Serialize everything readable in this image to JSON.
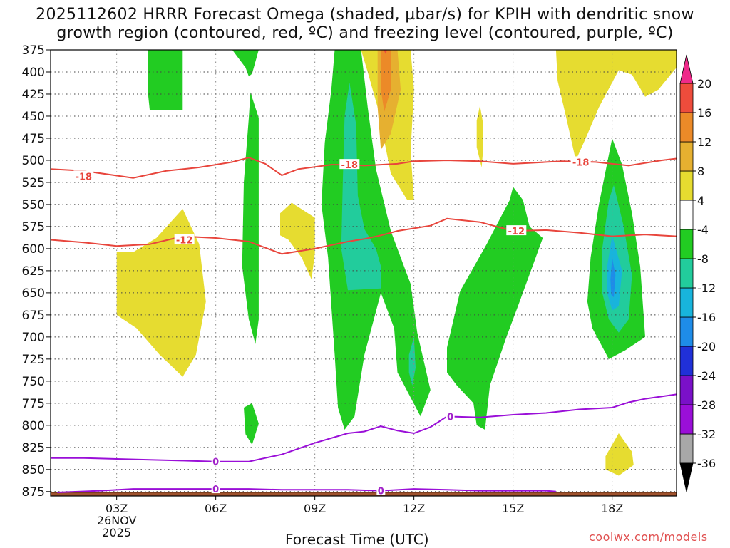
{
  "chart_data": {
    "type": "heatmap",
    "title_line1": "2025112602 HRRR Forecast Omega (shaded, µbar/s) for KPIH with dendritic snow",
    "title_line2": "growth region (contoured, red, ºC) and freezing level (contoured, purple, ºC)",
    "xlabel": "Forecast Time (UTC)",
    "ylabel": "",
    "credit": "coolwx.com/models",
    "x_range_hours": [
      1.0,
      19.95
    ],
    "y_range_mb": [
      375,
      880
    ],
    "y_ticks": [
      375,
      400,
      425,
      450,
      475,
      500,
      525,
      550,
      575,
      600,
      625,
      650,
      675,
      700,
      725,
      750,
      775,
      800,
      825,
      850,
      875
    ],
    "y_tick_labels": [
      "375",
      "400",
      "425",
      "450",
      "475",
      "500",
      "525",
      "550",
      "575",
      "600",
      "625",
      "650",
      "675",
      "700",
      "725",
      "750",
      "775",
      "800",
      "825",
      "850",
      "875"
    ],
    "x_ticks": [
      {
        "hour": 3,
        "label": "03Z",
        "sub1": "26NOV",
        "sub2": "2025"
      },
      {
        "hour": 6,
        "label": "06Z"
      },
      {
        "hour": 9,
        "label": "09Z"
      },
      {
        "hour": 12,
        "label": "12Z"
      },
      {
        "hour": 15,
        "label": "15Z"
      },
      {
        "hour": 18,
        "label": "18Z"
      }
    ],
    "colorbar": {
      "levels": [
        -36,
        -32,
        -28,
        -24,
        -20,
        -16,
        -12,
        -8,
        -4,
        4,
        8,
        12,
        16,
        20
      ],
      "labels": [
        "20",
        "16",
        "12",
        "8",
        "4",
        "-4",
        "-8",
        "-12",
        "-16",
        "-20",
        "-24",
        "-28",
        "-32",
        "-36"
      ],
      "colors_bottom_to_top": [
        "#a8a8a8",
        "#9a0fd8",
        "#7a10c8",
        "#2030d8",
        "#1e8ce8",
        "#18b4dc",
        "#22cc9c",
        "#22cc22",
        "#ffffff",
        "#e6dc30",
        "#e6b030",
        "#ec8a28",
        "#ee4c3c"
      ],
      "over_color": "#ee2a8a",
      "under_color": "#000000"
    },
    "omega_regions": [
      {
        "level": 4,
        "color": "#e6dc30",
        "points": [
          [
            3.0,
            604
          ],
          [
            3.5,
            604
          ],
          [
            4.2,
            588
          ],
          [
            5.0,
            555
          ],
          [
            5.5,
            595
          ],
          [
            5.7,
            660
          ],
          [
            5.4,
            720
          ],
          [
            5.0,
            745
          ],
          [
            4.3,
            720
          ],
          [
            3.6,
            690
          ],
          [
            3.0,
            675
          ]
        ]
      },
      {
        "level": 4,
        "color": "#e6dc30",
        "points": [
          [
            7.95,
            560
          ],
          [
            8.3,
            548
          ],
          [
            9.0,
            565
          ],
          [
            9.0,
            605
          ],
          [
            8.9,
            635
          ],
          [
            8.6,
            610
          ],
          [
            8.2,
            590
          ],
          [
            7.95,
            585
          ]
        ]
      },
      {
        "level": 4,
        "color": "#e6dc30",
        "points": [
          [
            10.4,
            375
          ],
          [
            11.9,
            375
          ],
          [
            12.0,
            420
          ],
          [
            11.9,
            490
          ],
          [
            12.0,
            545
          ],
          [
            11.8,
            545
          ],
          [
            11.3,
            515
          ],
          [
            10.9,
            440
          ],
          [
            10.6,
            400
          ]
        ]
      },
      {
        "level": 8,
        "color": "#e6b030",
        "points": [
          [
            10.9,
            375
          ],
          [
            11.5,
            375
          ],
          [
            11.6,
            420
          ],
          [
            11.3,
            470
          ],
          [
            11.0,
            488
          ],
          [
            10.9,
            440
          ]
        ]
      },
      {
        "level": 12,
        "color": "#ec8a28",
        "points": [
          [
            11.0,
            375
          ],
          [
            11.3,
            375
          ],
          [
            11.3,
            420
          ],
          [
            11.1,
            445
          ],
          [
            11.0,
            420
          ]
        ]
      },
      {
        "level": 16,
        "color": "#ee4c3c",
        "points": [
          [
            11.08,
            375
          ],
          [
            11.18,
            375
          ],
          [
            11.15,
            380
          ]
        ]
      },
      {
        "level": 4,
        "color": "#e6dc30",
        "points": [
          [
            13.9,
            455
          ],
          [
            14.0,
            438
          ],
          [
            14.1,
            460
          ],
          [
            14.1,
            485
          ],
          [
            14.05,
            508
          ],
          [
            13.9,
            485
          ]
        ]
      },
      {
        "level": 4,
        "color": "#e6dc30",
        "points": [
          [
            16.3,
            375
          ],
          [
            19.95,
            375
          ],
          [
            19.95,
            395
          ],
          [
            19.4,
            420
          ],
          [
            19.0,
            428
          ],
          [
            18.6,
            403
          ],
          [
            18.2,
            398
          ],
          [
            17.6,
            440
          ],
          [
            17.2,
            475
          ],
          [
            16.9,
            500
          ],
          [
            16.6,
            450
          ],
          [
            16.35,
            410
          ]
        ]
      },
      {
        "level": 4,
        "color": "#e6dc30",
        "points": [
          [
            17.8,
            835
          ],
          [
            18.2,
            809
          ],
          [
            18.6,
            830
          ],
          [
            18.65,
            845
          ],
          [
            18.2,
            857
          ],
          [
            17.8,
            850
          ]
        ]
      },
      {
        "level": -4,
        "color": "#22cc22",
        "points": [
          [
            3.95,
            375
          ],
          [
            4.4,
            375
          ],
          [
            5.0,
            375
          ],
          [
            5.0,
            443
          ],
          [
            4.0,
            443
          ],
          [
            3.95,
            425
          ]
        ]
      },
      {
        "level": -4,
        "color": "#22cc22",
        "points": [
          [
            6.5,
            375
          ],
          [
            7.3,
            375
          ],
          [
            7.1,
            402
          ],
          [
            7.0,
            405
          ],
          [
            6.9,
            395
          ]
        ]
      },
      {
        "level": -4,
        "color": "#22cc22",
        "points": [
          [
            7.0,
            452
          ],
          [
            7.05,
            423
          ],
          [
            7.3,
            452
          ],
          [
            7.3,
            525
          ],
          [
            7.3,
            618
          ],
          [
            7.3,
            680
          ],
          [
            7.2,
            708
          ],
          [
            7.0,
            680
          ],
          [
            6.8,
            620
          ],
          [
            6.85,
            525
          ]
        ]
      },
      {
        "level": -4,
        "color": "#22cc22",
        "points": [
          [
            6.85,
            780
          ],
          [
            7.1,
            775
          ],
          [
            7.3,
            798
          ],
          [
            7.1,
            822
          ],
          [
            6.9,
            810
          ]
        ]
      },
      {
        "level": -4,
        "color": "#22cc22",
        "points": [
          [
            9.6,
            375
          ],
          [
            10.4,
            375
          ],
          [
            10.6,
            440
          ],
          [
            10.85,
            510
          ],
          [
            11.3,
            580
          ],
          [
            11.9,
            640
          ],
          [
            12.1,
            695
          ],
          [
            12.5,
            760
          ],
          [
            12.2,
            790
          ],
          [
            11.5,
            740
          ],
          [
            11.4,
            690
          ],
          [
            11.0,
            650
          ],
          [
            10.5,
            720
          ],
          [
            10.2,
            790
          ],
          [
            9.9,
            805
          ],
          [
            9.7,
            780
          ],
          [
            9.6,
            720
          ],
          [
            9.4,
            610
          ],
          [
            9.2,
            550
          ],
          [
            9.3,
            480
          ],
          [
            9.5,
            420
          ]
        ]
      },
      {
        "level": -4,
        "color": "#22cc22",
        "points": [
          [
            13.0,
            712
          ],
          [
            13.4,
            648
          ],
          [
            14.2,
            595
          ],
          [
            14.9,
            545
          ],
          [
            15.0,
            530
          ],
          [
            15.3,
            545
          ],
          [
            15.5,
            575
          ],
          [
            15.9,
            588
          ],
          [
            15.2,
            660
          ],
          [
            14.8,
            700
          ],
          [
            14.3,
            755
          ],
          [
            14.15,
            805
          ],
          [
            13.9,
            800
          ],
          [
            13.8,
            775
          ],
          [
            13.3,
            755
          ],
          [
            13.0,
            740
          ]
        ]
      },
      {
        "level": -4,
        "color": "#22cc22",
        "points": [
          [
            17.35,
            610
          ],
          [
            17.6,
            550
          ],
          [
            18.0,
            475
          ],
          [
            18.3,
            505
          ],
          [
            18.6,
            560
          ],
          [
            18.85,
            620
          ],
          [
            19.0,
            700
          ],
          [
            18.4,
            715
          ],
          [
            17.9,
            725
          ],
          [
            17.4,
            690
          ],
          [
            17.25,
            660
          ]
        ]
      },
      {
        "level": -8,
        "color": "#22cc9c",
        "points": [
          [
            9.9,
            450
          ],
          [
            10.05,
            412
          ],
          [
            10.25,
            460
          ],
          [
            10.3,
            540
          ],
          [
            10.5,
            578
          ],
          [
            10.85,
            600
          ],
          [
            11.0,
            620
          ],
          [
            11.0,
            645
          ],
          [
            10.0,
            647
          ],
          [
            9.8,
            600
          ],
          [
            9.85,
            520
          ]
        ]
      },
      {
        "level": -8,
        "color": "#22cc9c",
        "points": [
          [
            11.85,
            720
          ],
          [
            12.0,
            700
          ],
          [
            12.05,
            735
          ],
          [
            11.95,
            755
          ],
          [
            11.85,
            740
          ]
        ]
      },
      {
        "level": -8,
        "color": "#22cc9c",
        "points": [
          [
            17.7,
            600
          ],
          [
            17.9,
            545
          ],
          [
            18.05,
            528
          ],
          [
            18.35,
            575
          ],
          [
            18.6,
            630
          ],
          [
            18.5,
            680
          ],
          [
            18.2,
            695
          ],
          [
            17.9,
            680
          ],
          [
            17.7,
            650
          ]
        ]
      },
      {
        "level": -12,
        "color": "#18b4dc",
        "points": [
          [
            17.85,
            620
          ],
          [
            18.0,
            585
          ],
          [
            18.3,
            625
          ],
          [
            18.2,
            665
          ],
          [
            18.0,
            670
          ],
          [
            17.85,
            650
          ]
        ]
      },
      {
        "level": -16,
        "color": "#1e8ce8",
        "points": [
          [
            17.95,
            635
          ],
          [
            18.0,
            610
          ],
          [
            18.1,
            630
          ],
          [
            18.05,
            655
          ],
          [
            17.97,
            652
          ]
        ]
      }
    ],
    "temperature_contours": [
      {
        "value": -18,
        "label": "-18",
        "color": "#e8453c",
        "x": [
          1.0,
          2.0,
          3.5,
          4.5,
          5.5,
          6.5,
          7.0,
          7.5,
          8.0,
          8.5,
          9.5,
          10.0,
          10.5,
          11.5,
          12.0,
          13.0,
          14.0,
          15.0,
          16.0,
          16.5,
          17.5,
          18.5,
          19.5,
          19.95
        ],
        "y": [
          510,
          512,
          520,
          512,
          508,
          502,
          497,
          504,
          517,
          510,
          505,
          505,
          506,
          504,
          501,
          500,
          501,
          504,
          502,
          501,
          502,
          506,
          500,
          498
        ]
      },
      {
        "value": -12,
        "label": "-12",
        "color": "#e8453c",
        "x": [
          1.0,
          2.0,
          3.0,
          4.0,
          5.0,
          6.0,
          7.0,
          8.0,
          9.0,
          10.0,
          10.5,
          11.0,
          11.5,
          12.0,
          12.5,
          13.0,
          14.0,
          15.0,
          16.0,
          17.0,
          18.0,
          19.0,
          19.95
        ],
        "y": [
          590,
          593,
          597,
          595,
          586,
          588,
          592,
          606,
          600,
          592,
          589,
          585,
          580,
          577,
          574,
          566,
          570,
          580,
          579,
          582,
          586,
          584,
          586
        ]
      },
      {
        "value": 0,
        "label": "0",
        "color": "#9a0fd8",
        "x": [
          1.0,
          2.0,
          4.0,
          5.0,
          6.0,
          7.0,
          7.5,
          8.0,
          9.0,
          10.0,
          10.5,
          11.0,
          11.5,
          12.0,
          12.5,
          13.0,
          14.0,
          15.0,
          16.0,
          17.0,
          17.5,
          18.0,
          18.5,
          19.0,
          19.95
        ],
        "y": [
          837,
          837,
          839,
          840,
          841,
          841,
          837,
          833,
          820,
          809,
          807,
          801,
          806,
          809,
          802,
          790,
          791,
          788,
          786,
          782,
          781,
          780,
          774,
          770,
          765
        ]
      },
      {
        "value": 0,
        "label": "0",
        "color": "#9a0fd8",
        "x": [
          1.2,
          2.5,
          3.5,
          5.0,
          6.0,
          7.0,
          8.0,
          9.0,
          10.0,
          11.0,
          12.0,
          13.0,
          14.0,
          15.0,
          16.0,
          16.3
        ],
        "y": [
          876,
          874,
          872,
          872,
          872,
          872,
          873,
          873,
          873,
          874,
          872,
          873,
          874,
          874,
          874,
          875
        ]
      }
    ],
    "contour_labels": [
      {
        "text": "-18",
        "x": 2.0,
        "y": 518,
        "color": "red"
      },
      {
        "text": "-18",
        "x": 10.05,
        "y": 505,
        "color": "red"
      },
      {
        "text": "-18",
        "x": 17.05,
        "y": 502,
        "color": "red"
      },
      {
        "text": "-12",
        "x": 5.05,
        "y": 590,
        "color": "red"
      },
      {
        "text": "-12",
        "x": 15.1,
        "y": 580,
        "color": "red"
      },
      {
        "text": "0",
        "x": 6.0,
        "y": 841,
        "color": "purple"
      },
      {
        "text": "0",
        "x": 6.0,
        "y": 872,
        "color": "purple"
      },
      {
        "text": "0",
        "x": 11.0,
        "y": 874,
        "color": "purple"
      },
      {
        "text": "0",
        "x": 13.1,
        "y": 790,
        "color": "purple"
      }
    ],
    "terrain": {
      "color": "#a0522d",
      "top_mb": 876
    }
  }
}
